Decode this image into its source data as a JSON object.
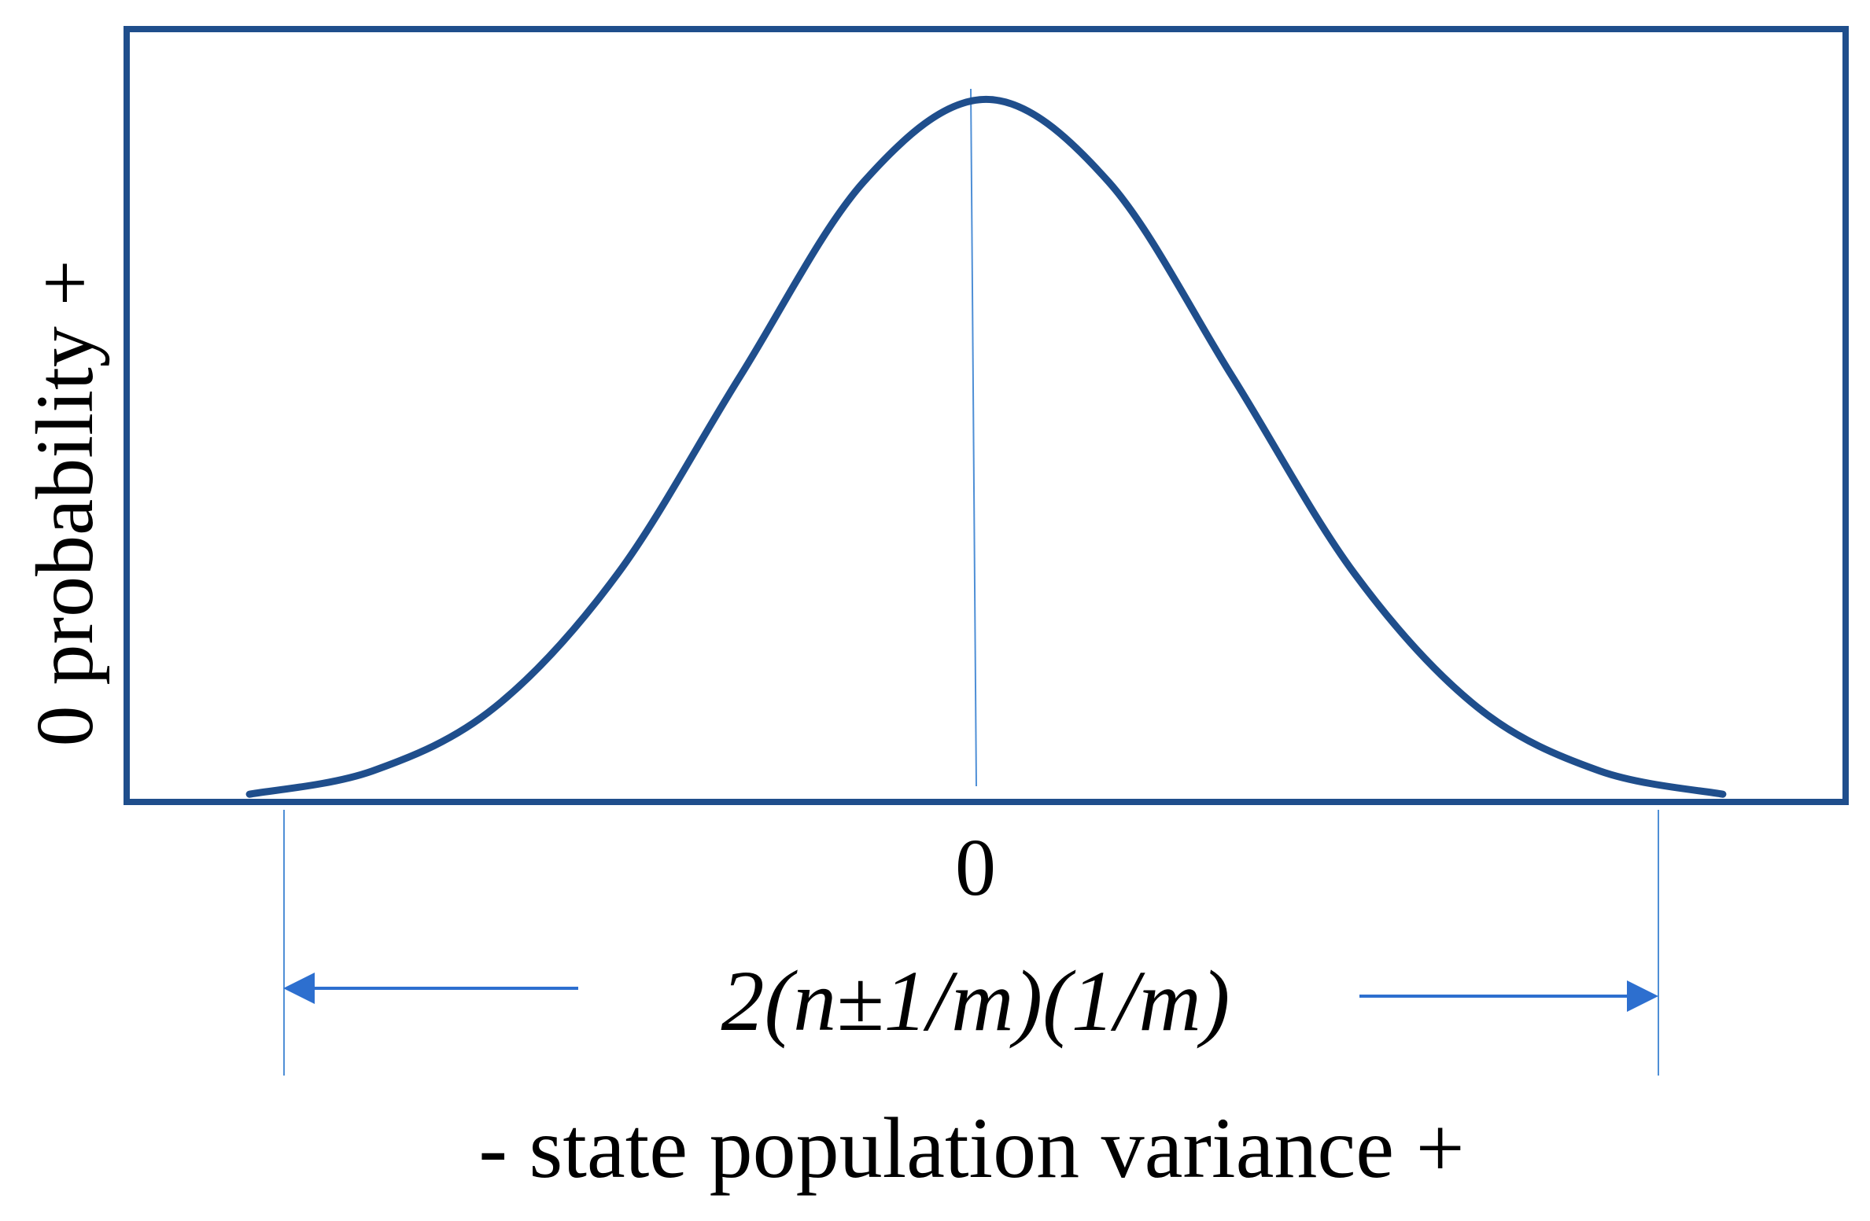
{
  "chart_data": {
    "type": "line",
    "title": "",
    "xlabel": "-  state population variance +",
    "ylabel": "0 probability +",
    "x_tick_labels": [
      "0"
    ],
    "span_label": "2(n±1/m)(1/m)",
    "curve": "gaussian",
    "series": [
      {
        "x": [
          -3,
          -2.5,
          -2,
          -1.5,
          -1,
          -0.5,
          0,
          0.5,
          1,
          1.5,
          2,
          2.5,
          3
        ],
        "values": [
          0.011,
          0.044,
          0.135,
          0.325,
          0.607,
          0.882,
          1.0,
          0.882,
          0.607,
          0.325,
          0.135,
          0.044,
          0.011
        ]
      }
    ],
    "xlim": [
      -3.5,
      3.5
    ],
    "ylim": [
      0,
      1.1
    ],
    "grid": false,
    "legend": "none",
    "colors": {
      "curve": "#1f4e8c",
      "frame": "#1f4e8c",
      "guide": "#4f8fd6",
      "arrow": "#2d6fcf",
      "text": "#000000"
    }
  }
}
